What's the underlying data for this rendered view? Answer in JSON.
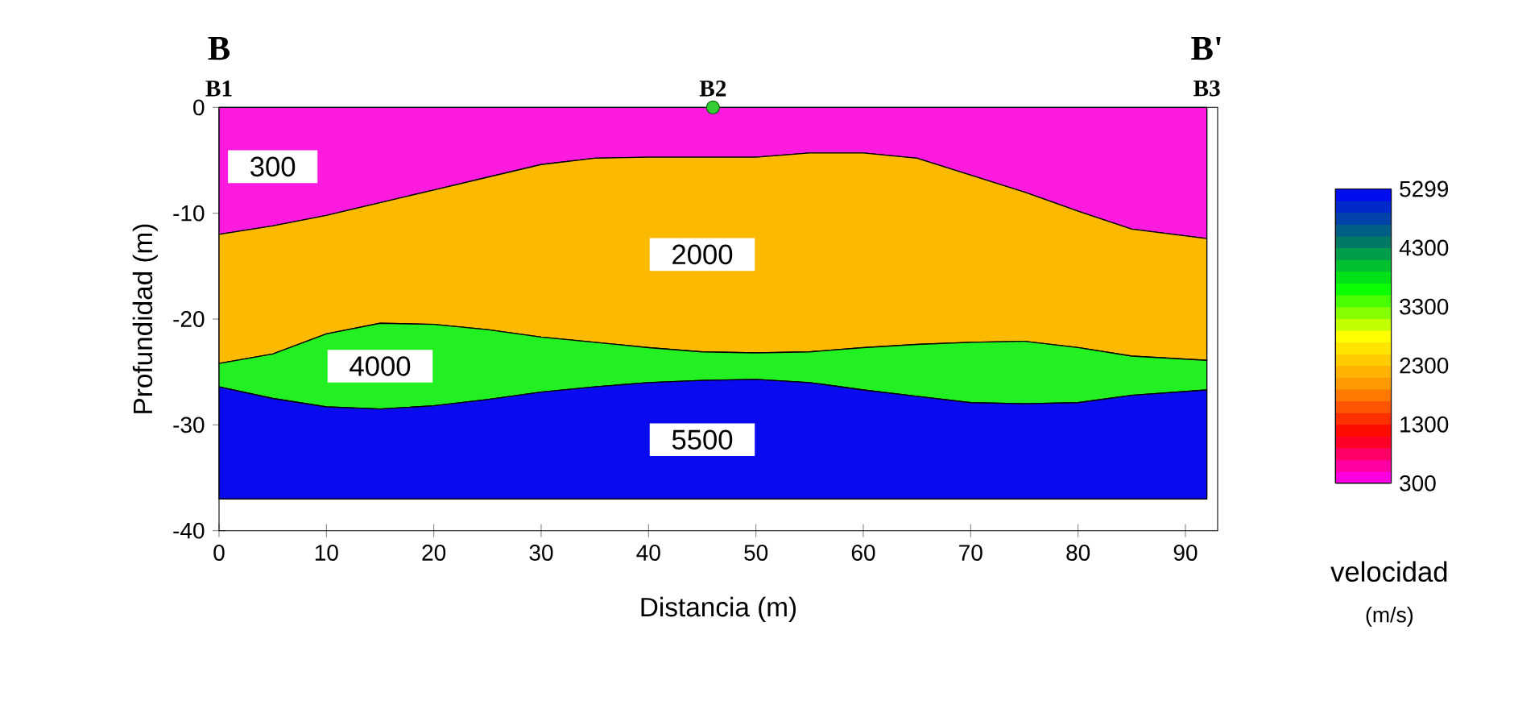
{
  "chart_data": {
    "type": "area",
    "stacked": true,
    "xlabel": "Distancia (m)",
    "ylabel": "Profundidad (m)",
    "clabel": "velocidad",
    "annotations": [
      {
        "text": "B1",
        "x": 0,
        "y": 0
      },
      {
        "text": "B",
        "x": 0,
        "y": 0
      },
      {
        "text": "B2",
        "x": 46,
        "y": 0
      },
      {
        "text": "B3",
        "x": 92,
        "y": 0
      },
      {
        "text": "B'",
        "x": 92,
        "y": 0
      },
      "(m/s)"
    ],
    "x": [
      0,
      5,
      10,
      15,
      20,
      25,
      30,
      35,
      40,
      45,
      50,
      55,
      60,
      65,
      70,
      75,
      80,
      85,
      92
    ],
    "series": [
      {
        "name": "300",
        "color": "#ff1ae0",
        "values": [
          -12,
          -11.2,
          -10.2,
          -9,
          -7.8,
          -6.6,
          -5.4,
          -4.8,
          -4.7,
          -4.7,
          -4.7,
          -4.3,
          -4.3,
          -4.8,
          -6.4,
          -8,
          -9.8,
          -11.5,
          -12.4
        ]
      },
      {
        "name": "2000",
        "color": "#fbba00",
        "values": [
          -12.2,
          -12.1,
          -11.2,
          -11.4,
          -12.7,
          -14.4,
          -16.3,
          -17.4,
          -18.0,
          -18.4,
          -18.5,
          -18.8,
          -18.4,
          -17.6,
          -15.8,
          -14.1,
          -12.9,
          -12.0,
          -11.5
        ]
      },
      {
        "name": "4000",
        "color": "#22f022",
        "values": [
          -2.2,
          -4.2,
          -6.9,
          -8.1,
          -7.7,
          -6.6,
          -5.2,
          -4.2,
          -3.3,
          -2.7,
          -2.5,
          -2.9,
          -4.0,
          -4.9,
          -5.7,
          -5.9,
          -5.2,
          -3.7,
          -2.8
        ]
      },
      {
        "name": "5500",
        "color": "#0a0aee",
        "values": [
          -10.6,
          -9.5,
          -8.7,
          -8.5,
          -8.8,
          -9.4,
          -10.1,
          -10.6,
          -11.0,
          -11.2,
          -11.3,
          -11.0,
          -10.3,
          -9.7,
          -9.1,
          -9.0,
          -9.1,
          -9.8,
          -10.3
        ]
      },
      {
        "type": "scatter",
        "color": "#33cc33",
        "x": [
          46
        ],
        "values": [
          0
        ]
      }
    ],
    "xlim": [
      0,
      93
    ],
    "xticks": [
      0,
      10,
      20,
      30,
      40,
      50,
      60,
      70,
      80,
      90
    ],
    "ylim": [
      -40,
      0
    ],
    "yticks": [
      -40,
      -30,
      -20,
      -10,
      0
    ],
    "clim": [
      300,
      5299
    ],
    "cticks": [
      300,
      1300,
      2300,
      3300,
      4300,
      5299
    ]
  }
}
